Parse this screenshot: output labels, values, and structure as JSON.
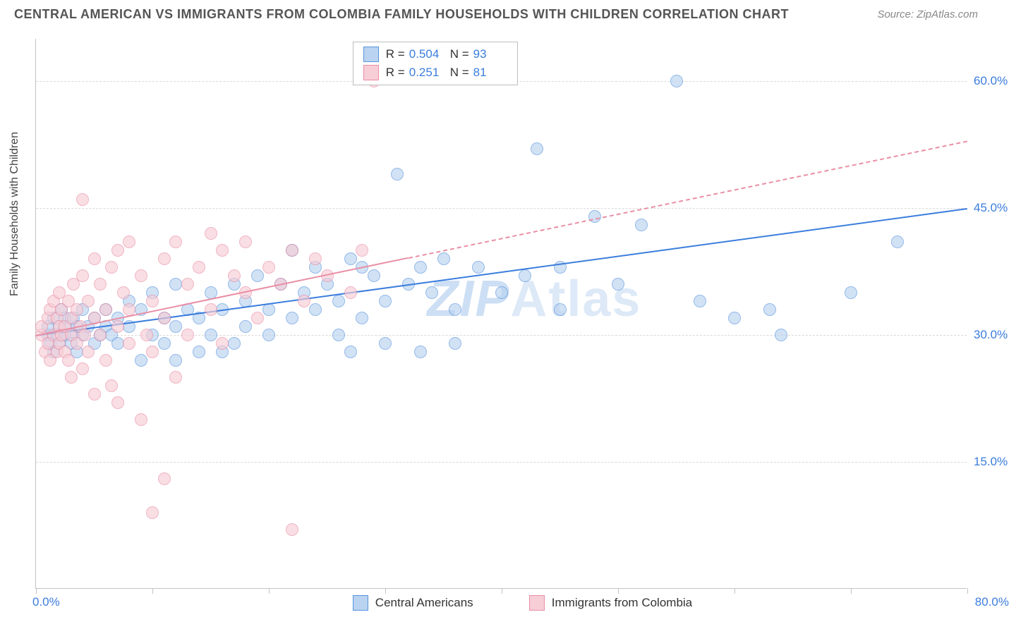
{
  "header": {
    "title": "CENTRAL AMERICAN VS IMMIGRANTS FROM COLOMBIA FAMILY HOUSEHOLDS WITH CHILDREN CORRELATION CHART",
    "source": "Source: ZipAtlas.com"
  },
  "chart": {
    "type": "scatter",
    "ylabel": "Family Households with Children",
    "xlim": [
      0,
      80
    ],
    "ylim": [
      0,
      65
    ],
    "xtick_positions": [
      0,
      10,
      20,
      30,
      40,
      50,
      60,
      70,
      80
    ],
    "ytick_values": [
      15,
      30,
      45,
      60
    ],
    "ytick_labels": [
      "15.0%",
      "30.0%",
      "45.0%",
      "60.0%"
    ],
    "x_start_label": "0.0%",
    "x_end_label": "80.0%",
    "background_color": "#ffffff",
    "grid_color": "#d9d9d9",
    "axis_color": "#c3c3c3",
    "tick_label_color": "#3b7ddd",
    "marker_radius": 9,
    "marker_border_width": 1.5,
    "watermark": "ZIPAtlas",
    "series": [
      {
        "name": "Central Americans",
        "fill_color": "#b9d3f0",
        "border_color": "#5a94dd",
        "fill_opacity": 0.65,
        "r": 0.504,
        "n": 93,
        "trend": {
          "x1": 0,
          "y1": 30,
          "x2": 80,
          "y2": 45,
          "color": "#3b7ddd",
          "width": 2.5,
          "solid_until_x": 80
        },
        "points": [
          [
            1,
            30
          ],
          [
            1,
            31
          ],
          [
            1.2,
            29
          ],
          [
            1.5,
            32
          ],
          [
            1.5,
            28
          ],
          [
            1.8,
            30
          ],
          [
            2,
            31
          ],
          [
            2,
            29
          ],
          [
            2.2,
            33
          ],
          [
            2.5,
            30
          ],
          [
            2.5,
            32
          ],
          [
            2.8,
            31
          ],
          [
            3,
            30
          ],
          [
            3,
            29
          ],
          [
            3.2,
            32
          ],
          [
            3.5,
            31
          ],
          [
            3.5,
            28
          ],
          [
            4,
            30
          ],
          [
            4,
            33
          ],
          [
            4.5,
            31
          ],
          [
            5,
            32
          ],
          [
            5,
            29
          ],
          [
            5.5,
            30
          ],
          [
            6,
            33
          ],
          [
            6,
            31
          ],
          [
            6.5,
            30
          ],
          [
            7,
            32
          ],
          [
            7,
            29
          ],
          [
            8,
            31
          ],
          [
            8,
            34
          ],
          [
            9,
            33
          ],
          [
            9,
            27
          ],
          [
            10,
            30
          ],
          [
            10,
            35
          ],
          [
            11,
            32
          ],
          [
            11,
            29
          ],
          [
            12,
            31
          ],
          [
            12,
            36
          ],
          [
            12,
            27
          ],
          [
            13,
            33
          ],
          [
            14,
            32
          ],
          [
            14,
            28
          ],
          [
            15,
            35
          ],
          [
            15,
            30
          ],
          [
            16,
            33
          ],
          [
            16,
            28
          ],
          [
            17,
            36
          ],
          [
            17,
            29
          ],
          [
            18,
            34
          ],
          [
            18,
            31
          ],
          [
            19,
            37
          ],
          [
            20,
            33
          ],
          [
            20,
            30
          ],
          [
            21,
            36
          ],
          [
            22,
            32
          ],
          [
            22,
            40
          ],
          [
            23,
            35
          ],
          [
            24,
            33
          ],
          [
            24,
            38
          ],
          [
            25,
            36
          ],
          [
            26,
            34
          ],
          [
            26,
            30
          ],
          [
            27,
            39
          ],
          [
            27,
            28
          ],
          [
            28,
            38
          ],
          [
            28,
            32
          ],
          [
            29,
            37
          ],
          [
            30,
            34
          ],
          [
            30,
            29
          ],
          [
            31,
            49
          ],
          [
            32,
            36
          ],
          [
            33,
            28
          ],
          [
            33,
            38
          ],
          [
            34,
            35
          ],
          [
            35,
            39
          ],
          [
            36,
            33
          ],
          [
            36,
            29
          ],
          [
            38,
            38
          ],
          [
            40,
            35
          ],
          [
            42,
            37
          ],
          [
            43,
            52
          ],
          [
            45,
            38
          ],
          [
            45,
            33
          ],
          [
            48,
            44
          ],
          [
            50,
            36
          ],
          [
            52,
            43
          ],
          [
            55,
            60
          ],
          [
            57,
            34
          ],
          [
            60,
            32
          ],
          [
            63,
            33
          ],
          [
            64,
            30
          ],
          [
            70,
            35
          ],
          [
            74,
            41
          ]
        ]
      },
      {
        "name": "Immigrants from Colombia",
        "fill_color": "#f7cdd6",
        "border_color": "#e98fa5",
        "fill_opacity": 0.65,
        "r": 0.251,
        "n": 81,
        "trend": {
          "x1": 0,
          "y1": 30,
          "x2": 80,
          "y2": 53,
          "color": "#e98fa5",
          "width": 2,
          "solid_until_x": 32
        },
        "points": [
          [
            0.5,
            30
          ],
          [
            0.5,
            31
          ],
          [
            0.8,
            28
          ],
          [
            1,
            32
          ],
          [
            1,
            29
          ],
          [
            1.2,
            33
          ],
          [
            1.2,
            27
          ],
          [
            1.5,
            30
          ],
          [
            1.5,
            34
          ],
          [
            1.8,
            28
          ],
          [
            1.8,
            32
          ],
          [
            2,
            31
          ],
          [
            2,
            29
          ],
          [
            2,
            35
          ],
          [
            2.2,
            30
          ],
          [
            2.2,
            33
          ],
          [
            2.5,
            28
          ],
          [
            2.5,
            31
          ],
          [
            2.8,
            34
          ],
          [
            2.8,
            27
          ],
          [
            3,
            30
          ],
          [
            3,
            32
          ],
          [
            3,
            25
          ],
          [
            3.2,
            36
          ],
          [
            3.5,
            29
          ],
          [
            3.5,
            33
          ],
          [
            3.8,
            31
          ],
          [
            4,
            37
          ],
          [
            4,
            26
          ],
          [
            4.2,
            30
          ],
          [
            4.5,
            34
          ],
          [
            4.5,
            28
          ],
          [
            5,
            23
          ],
          [
            5,
            39
          ],
          [
            5,
            32
          ],
          [
            5.5,
            30
          ],
          [
            5.5,
            36
          ],
          [
            6,
            33
          ],
          [
            6,
            27
          ],
          [
            6.5,
            38
          ],
          [
            6.5,
            24
          ],
          [
            7,
            31
          ],
          [
            7,
            40
          ],
          [
            7,
            22
          ],
          [
            7.5,
            35
          ],
          [
            8,
            29
          ],
          [
            8,
            41
          ],
          [
            8,
            33
          ],
          [
            9,
            37
          ],
          [
            9,
            20
          ],
          [
            9.5,
            30
          ],
          [
            4,
            46
          ],
          [
            10,
            34
          ],
          [
            10,
            28
          ],
          [
            11,
            39
          ],
          [
            11,
            32
          ],
          [
            12,
            41
          ],
          [
            12,
            25
          ],
          [
            13,
            36
          ],
          [
            13,
            30
          ],
          [
            14,
            38
          ],
          [
            10,
            9
          ],
          [
            15,
            42
          ],
          [
            15,
            33
          ],
          [
            16,
            40
          ],
          [
            16,
            29
          ],
          [
            17,
            37
          ],
          [
            18,
            35
          ],
          [
            18,
            41
          ],
          [
            19,
            32
          ],
          [
            20,
            38
          ],
          [
            11,
            13
          ],
          [
            21,
            36
          ],
          [
            22,
            40
          ],
          [
            23,
            34
          ],
          [
            24,
            39
          ],
          [
            25,
            37
          ],
          [
            22,
            7
          ],
          [
            27,
            35
          ],
          [
            28,
            40
          ],
          [
            29,
            60
          ]
        ]
      }
    ],
    "legend_top": {
      "r_label": "R =",
      "n_label": "N ="
    },
    "legend_bottom": {
      "items": [
        "Central Americans",
        "Immigrants from Colombia"
      ]
    }
  }
}
